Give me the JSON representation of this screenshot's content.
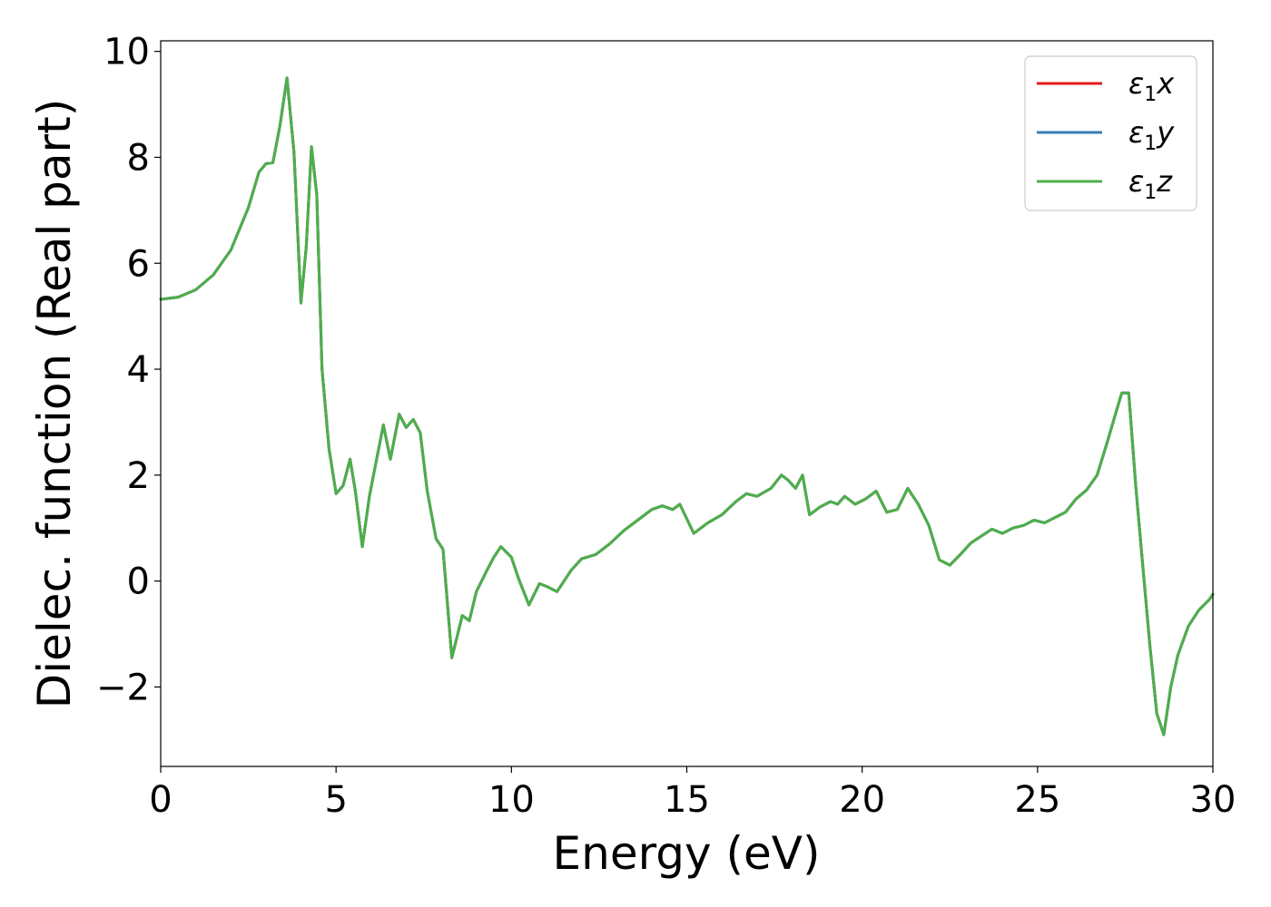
{
  "chart_data": {
    "type": "line",
    "xlabel": "Energy (eV)",
    "ylabel": "Dielec. function (Real part)",
    "xlim": [
      0,
      30
    ],
    "ylim": [
      -3.5,
      10.2
    ],
    "xticks": [
      0,
      5,
      10,
      15,
      20,
      25,
      30
    ],
    "yticks": [
      -2,
      0,
      2,
      4,
      6,
      8,
      10
    ],
    "xtick_labels": [
      "0",
      "5",
      "10",
      "15",
      "20",
      "25",
      "30"
    ],
    "ytick_labels": [
      "−2",
      "0",
      "2",
      "4",
      "6",
      "8",
      "10"
    ],
    "grid": false,
    "legend_position": "top-right",
    "series": [
      {
        "name": "ε₁x",
        "legend_main": "ε",
        "legend_sub": "1",
        "legend_var": "x",
        "color": "#e41a1c",
        "values_ref": "shared"
      },
      {
        "name": "ε₁y",
        "legend_main": "ε",
        "legend_sub": "1",
        "legend_var": "y",
        "color": "#377eb8",
        "values_ref": "shared"
      },
      {
        "name": "ε₁z",
        "legend_main": "ε",
        "legend_sub": "1",
        "legend_var": "z",
        "color": "#4daf4a",
        "values_ref": "shared"
      }
    ],
    "x": [
      0,
      0.5,
      1.0,
      1.5,
      2.0,
      2.5,
      2.8,
      3.0,
      3.2,
      3.4,
      3.6,
      3.8,
      4.0,
      4.15,
      4.3,
      4.45,
      4.6,
      4.8,
      5.0,
      5.2,
      5.4,
      5.55,
      5.75,
      5.95,
      6.15,
      6.35,
      6.55,
      6.8,
      7.0,
      7.2,
      7.4,
      7.6,
      7.85,
      8.05,
      8.3,
      8.6,
      8.8,
      9.0,
      9.3,
      9.5,
      9.7,
      10.0,
      10.2,
      10.5,
      10.8,
      11.0,
      11.3,
      11.7,
      12.0,
      12.4,
      12.8,
      13.2,
      13.6,
      14.0,
      14.3,
      14.6,
      14.8,
      15.2,
      15.6,
      16.0,
      16.4,
      16.7,
      17.0,
      17.4,
      17.7,
      17.9,
      18.1,
      18.3,
      18.5,
      18.8,
      19.1,
      19.3,
      19.5,
      19.8,
      20.1,
      20.4,
      20.7,
      21.0,
      21.3,
      21.6,
      21.9,
      22.2,
      22.5,
      22.8,
      23.1,
      23.4,
      23.7,
      24.0,
      24.3,
      24.6,
      24.9,
      25.2,
      25.5,
      25.8,
      26.1,
      26.4,
      26.7,
      27.0,
      27.2,
      27.4,
      27.6,
      27.8,
      28.0,
      28.2,
      28.4,
      28.6,
      28.8,
      29.0,
      29.3,
      29.6,
      29.9,
      30.0
    ],
    "y": [
      5.32,
      5.36,
      5.5,
      5.78,
      6.25,
      7.05,
      7.72,
      7.88,
      7.9,
      8.6,
      9.5,
      8.1,
      5.25,
      6.3,
      8.2,
      7.3,
      4.0,
      2.5,
      1.65,
      1.8,
      2.3,
      1.7,
      0.65,
      1.6,
      2.28,
      2.95,
      2.3,
      3.15,
      2.9,
      3.05,
      2.8,
      1.7,
      0.8,
      0.6,
      -1.45,
      -0.65,
      -0.75,
      -0.2,
      0.2,
      0.45,
      0.65,
      0.45,
      0.05,
      -0.45,
      -0.05,
      -0.1,
      -0.2,
      0.2,
      0.42,
      0.5,
      0.7,
      0.95,
      1.15,
      1.35,
      1.42,
      1.35,
      1.45,
      0.9,
      1.1,
      1.25,
      1.5,
      1.65,
      1.6,
      1.75,
      2.0,
      1.9,
      1.75,
      2.0,
      1.25,
      1.4,
      1.5,
      1.45,
      1.6,
      1.45,
      1.55,
      1.7,
      1.3,
      1.35,
      1.75,
      1.45,
      1.05,
      0.4,
      0.3,
      0.5,
      0.72,
      0.85,
      0.98,
      0.9,
      1.0,
      1.05,
      1.15,
      1.1,
      1.2,
      1.3,
      1.55,
      1.72,
      2.0,
      2.65,
      3.1,
      3.55,
      3.55,
      1.8,
      0.3,
      -1.2,
      -2.5,
      -2.9,
      -2.0,
      -1.4,
      -0.85,
      -0.55,
      -0.35,
      -0.25
    ]
  }
}
